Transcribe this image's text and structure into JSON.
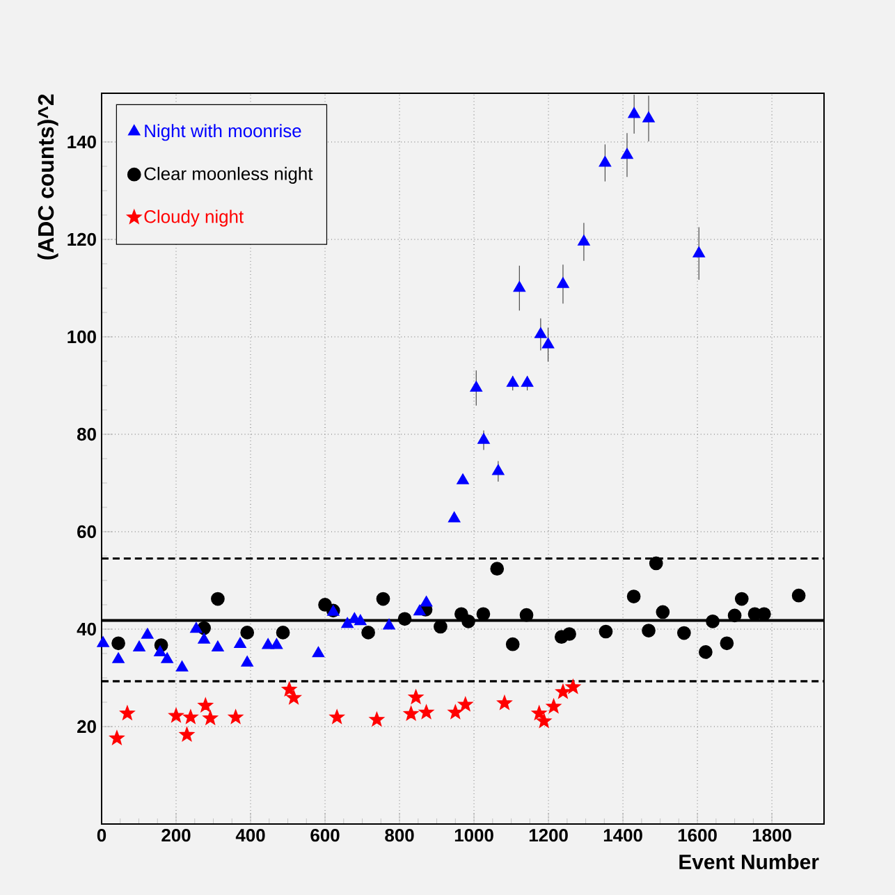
{
  "chart_data": {
    "type": "scatter",
    "xlabel": "Event Number",
    "ylabel": "(ADC counts)^2",
    "xlim": [
      0,
      1940
    ],
    "ylim": [
      0,
      150
    ],
    "xticks": [
      0,
      200,
      400,
      600,
      800,
      1000,
      1200,
      1400,
      1600,
      1800
    ],
    "yticks": [
      20,
      40,
      60,
      80,
      100,
      120,
      140
    ],
    "grid": true,
    "legend": "top left",
    "series": [
      {
        "name": "Night with moonrise",
        "color": "#0000ff",
        "marker": "triangle",
        "x": [
          4,
          45,
          101,
          123,
          157,
          176,
          216,
          254,
          275,
          312,
          372,
          391,
          447,
          470,
          582,
          622,
          660,
          679,
          695,
          772,
          854,
          872,
          947,
          970,
          1006,
          1026,
          1065,
          1104,
          1122,
          1143,
          1179,
          1199,
          1239,
          1295,
          1352,
          1411,
          1430,
          1469,
          1604
        ],
        "values": [
          37.1,
          33.8,
          36.2,
          38.8,
          35.2,
          33.8,
          32.1,
          40,
          37.8,
          36.2,
          36.9,
          33.1,
          36.7,
          36.7,
          35,
          43.5,
          41,
          42,
          41.6,
          40.7,
          43.6,
          45.4,
          62.7,
          70.5,
          89.5,
          78.8,
          72.4,
          90.5,
          110,
          90.5,
          100.5,
          98.4,
          110.8,
          119.5,
          135.7,
          137.3,
          145.7,
          144.8,
          117.1
        ],
        "errors": [
          null,
          null,
          null,
          null,
          null,
          null,
          null,
          null,
          null,
          null,
          null,
          null,
          null,
          null,
          null,
          null,
          null,
          null,
          null,
          null,
          null,
          null,
          null,
          null,
          3.6,
          2,
          2.1,
          1.5,
          4.6,
          1.5,
          3.3,
          3.5,
          4,
          3.9,
          3.8,
          4.5,
          4,
          4.7,
          5.4
        ]
      },
      {
        "name": "Clear moonless night",
        "color": "#000000",
        "marker": "circle",
        "x": [
          45,
          160,
          275,
          312,
          391,
          487,
          600,
          622,
          716,
          756,
          814,
          870,
          910,
          966,
          985,
          1025,
          1062,
          1104,
          1141,
          1235,
          1256,
          1354,
          1429,
          1469,
          1489,
          1507,
          1564,
          1622,
          1641,
          1679,
          1700,
          1719,
          1754,
          1779,
          1872
        ],
        "values": [
          37.1,
          36.7,
          40.2,
          46.2,
          39.3,
          39.3,
          45,
          43.8,
          39.3,
          46.2,
          42.1,
          44,
          40.5,
          43.1,
          41.6,
          43.1,
          52.4,
          36.9,
          42.9,
          38.4,
          39,
          39.5,
          46.7,
          39.7,
          53.5,
          43.5,
          39.2,
          35.3,
          41.6,
          37.1,
          42.8,
          46.2,
          43.1,
          43.1,
          46.9
        ]
      },
      {
        "name": "Cloudy night",
        "color": "#ff0000",
        "marker": "star",
        "x": [
          41,
          69,
          200,
          229,
          239,
          279,
          292,
          360,
          504,
          516,
          632,
          739,
          831,
          844,
          872,
          950,
          977,
          1082,
          1175,
          1188,
          1214,
          1239,
          1266
        ],
        "values": [
          17.6,
          22.7,
          22.2,
          18.3,
          21.9,
          24.3,
          21.7,
          21.9,
          27.6,
          25.9,
          21.9,
          21.4,
          22.6,
          26,
          22.9,
          22.9,
          24.5,
          24.8,
          22.7,
          21.1,
          24.1,
          27.1,
          28.1
        ]
      }
    ],
    "ref_lines": [
      {
        "axis": "y",
        "value": 41.8,
        "line_style": "solid",
        "color": "#000000"
      },
      {
        "axis": "y",
        "value": 54.5,
        "line_style": "dashed",
        "color": "#000000"
      },
      {
        "axis": "y",
        "value": 29.3,
        "line_style": "dashed",
        "color": "#000000"
      }
    ]
  }
}
